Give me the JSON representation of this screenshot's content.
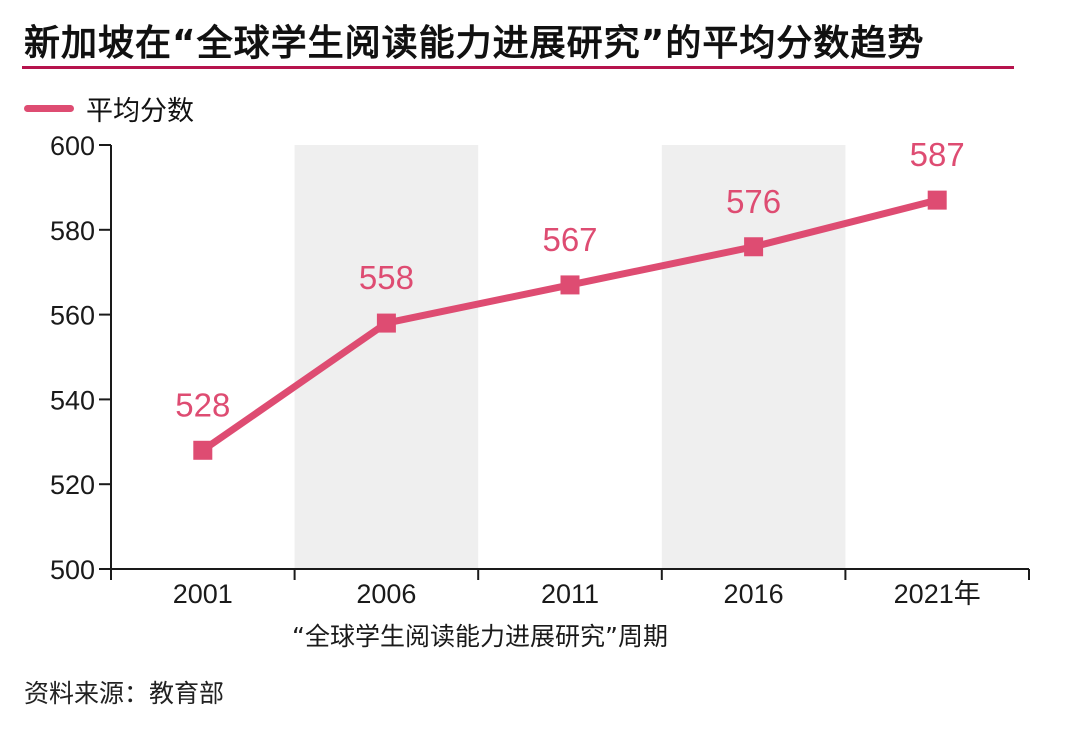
{
  "title": "新加坡在“全球学生阅读能力进展研究”的平均分数趋势",
  "source": "资料来源：教育部",
  "colors": {
    "accent": "#de4c72",
    "rule": "#b6134d",
    "band": "#efefef"
  },
  "chart_data": {
    "type": "line",
    "categories": [
      "2001",
      "2006",
      "2011",
      "2016",
      "2021年"
    ],
    "series": [
      {
        "name": "平均分数",
        "values": [
          528,
          558,
          567,
          576,
          587
        ]
      }
    ],
    "xlabel": "“全球学生阅读能力进展研究”周期",
    "ylabel": "",
    "ylim": [
      500,
      600
    ],
    "yticks": [
      500,
      520,
      540,
      560,
      580,
      600
    ],
    "data_labels": true,
    "marker": "square",
    "alternating_bands": true,
    "legend": "top-left"
  }
}
